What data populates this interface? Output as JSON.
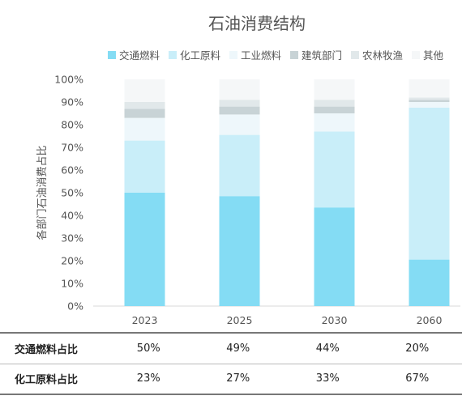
{
  "chart_data": {
    "type": "bar",
    "stacked": true,
    "title": "石油消费结构",
    "ylabel": "各部门石油消费占比",
    "xlabel": "",
    "categories": [
      "2023",
      "2025",
      "2030",
      "2060"
    ],
    "ylim": [
      0,
      100
    ],
    "yticks": [
      "0%",
      "10%",
      "20%",
      "30%",
      "40%",
      "50%",
      "60%",
      "70%",
      "80%",
      "90%",
      "100%"
    ],
    "grid": false,
    "legend_position": "top",
    "series": [
      {
        "name": "交通燃料",
        "color": "#84dcf4",
        "values": [
          50,
          48.5,
          43.5,
          20.5
        ]
      },
      {
        "name": "化工原料",
        "color": "#c9eef9",
        "values": [
          23,
          27,
          33.5,
          67
        ]
      },
      {
        "name": "工业燃料",
        "color": "#eef7fb",
        "values": [
          10,
          9,
          8,
          2.5
        ]
      },
      {
        "name": "建筑部门",
        "color": "#c8d3d6",
        "values": [
          4,
          3.5,
          3,
          1
        ]
      },
      {
        "name": "农林牧渔",
        "color": "#e1e8ea",
        "values": [
          3,
          3,
          3,
          1
        ]
      },
      {
        "name": "其他",
        "color": "#f5f7f8",
        "values": [
          10,
          9,
          9,
          8
        ]
      }
    ]
  },
  "table": {
    "rows": [
      {
        "label": "交通燃料占比",
        "values": [
          "50%",
          "49%",
          "44%",
          "20%"
        ]
      },
      {
        "label": "化工原料占比",
        "values": [
          "23%",
          "27%",
          "33%",
          "67%"
        ]
      }
    ]
  }
}
